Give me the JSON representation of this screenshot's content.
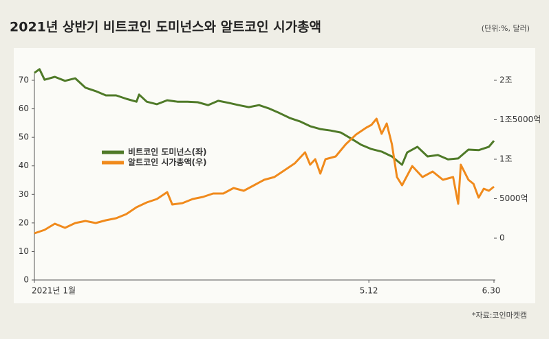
{
  "chart_data": {
    "type": "line",
    "title": "2021년 상반기 비트코인 도미넌스와 알트코인 시가총액",
    "subtitle": "(단위:%, 달러)",
    "source": "*자료:코인마켓캡",
    "xlim": [
      0,
      180
    ],
    "xticks": [
      {
        "value": 0,
        "label": "2021년 1월"
      },
      {
        "value": 131,
        "label": "5.12"
      },
      {
        "value": 180,
        "label": "6.30"
      }
    ],
    "ylim": [
      0,
      70
    ],
    "yticks": [
      0,
      10,
      20,
      30,
      40,
      50,
      60,
      70
    ],
    "y2lim": [
      -5300,
      20000
    ],
    "y2ticks": [
      0,
      {
        "value": 5000,
        "label": "5000억"
      },
      {
        "value": 10000,
        "label": "1조"
      },
      {
        "value": 15000,
        "label": "1조5000억"
      },
      {
        "value": 20000,
        "label": "2조"
      }
    ],
    "grid": false,
    "series": [
      {
        "name": "비트코인 도미넌스(좌)",
        "color": "#4f7a28",
        "axis": "y",
        "x": [
          0,
          2,
          4,
          8,
          12,
          16,
          20,
          24,
          28,
          32,
          36,
          40,
          41,
          44,
          48,
          52,
          56,
          60,
          64,
          68,
          72,
          76,
          80,
          84,
          88,
          92,
          96,
          100,
          104,
          108,
          112,
          116,
          120,
          124,
          128,
          132,
          136,
          140,
          144,
          146,
          150,
          154,
          158,
          162,
          166,
          170,
          174,
          178,
          180
        ],
        "values": [
          72.6,
          73.9,
          70.2,
          71.2,
          69.8,
          70.7,
          67.4,
          66.2,
          64.7,
          64.7,
          63.5,
          62.5,
          65,
          62.5,
          61.6,
          63,
          62.5,
          62.5,
          62.3,
          61.3,
          62.8,
          62.1,
          61.3,
          60.6,
          61.3,
          60.1,
          58.5,
          56.8,
          55.6,
          53.9,
          52.9,
          52.4,
          51.7,
          49.6,
          47.4,
          45.9,
          45,
          43.3,
          40.4,
          44.7,
          46.7,
          43.3,
          43.8,
          42.3,
          42.6,
          45.7,
          45.5,
          46.7,
          48.8
        ]
      },
      {
        "name": "알트코인 시가총액(우)",
        "color": "#f08a1c",
        "axis": "y2",
        "x": [
          0,
          4,
          8,
          12,
          16,
          20,
          24,
          28,
          32,
          36,
          40,
          44,
          48,
          52,
          54,
          58,
          62,
          66,
          70,
          74,
          78,
          82,
          86,
          90,
          94,
          98,
          102,
          106,
          108,
          110,
          112,
          114,
          118,
          122,
          126,
          130,
          132,
          134,
          136,
          138,
          140,
          142,
          144,
          148,
          152,
          156,
          160,
          164,
          166,
          167,
          170,
          172,
          174,
          176,
          178,
          180
        ],
        "values": [
          609,
          1043,
          1826,
          1304,
          1913,
          2174,
          1913,
          2261,
          2522,
          3043,
          3913,
          4522,
          4957,
          5826,
          4261,
          4435,
          4957,
          5217,
          5652,
          5652,
          6348,
          6000,
          6696,
          7391,
          7739,
          8609,
          9478,
          10870,
          9304,
          10000,
          8174,
          10000,
          10348,
          11913,
          13130,
          14000,
          14348,
          15130,
          13217,
          14522,
          11913,
          7739,
          6696,
          9130,
          7739,
          8435,
          7391,
          7739,
          4348,
          9304,
          7391,
          6870,
          5130,
          6261,
          6000,
          6522
        ]
      }
    ]
  }
}
